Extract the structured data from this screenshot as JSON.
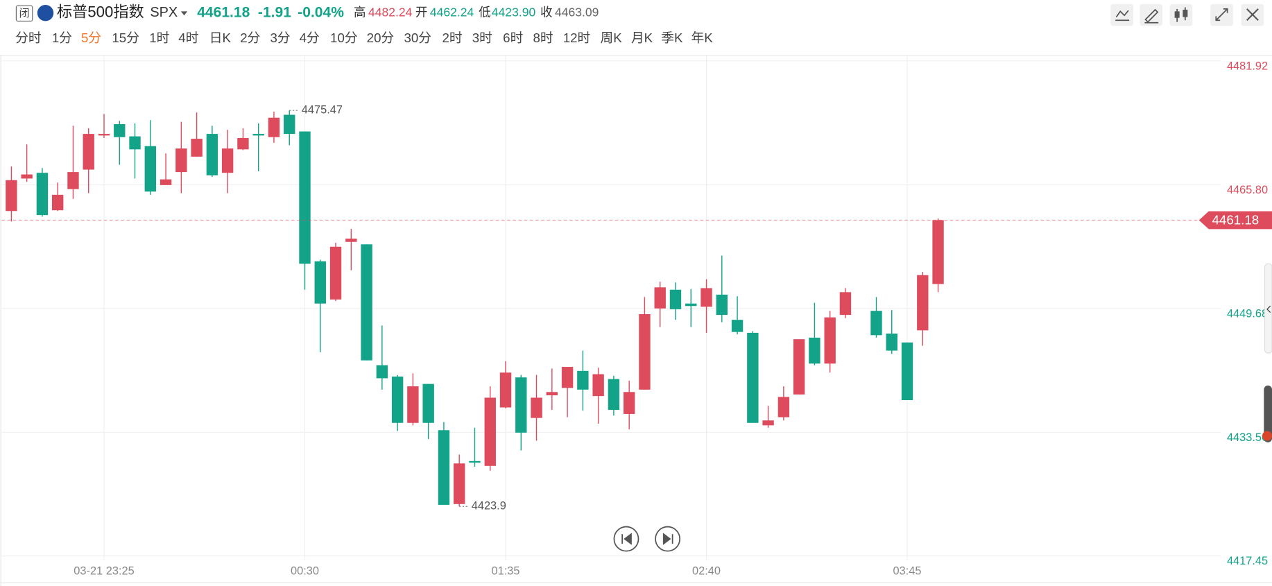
{
  "header": {
    "status": "闭",
    "name": "标普500指数",
    "symbol": "SPX",
    "price": "4461.18",
    "change": "-1.91",
    "change_pct": "-0.04%",
    "high_label": "高",
    "high": "4482.24",
    "open_label": "开",
    "open": "4462.24",
    "low_label": "低",
    "low": "4423.90",
    "close_label": "收",
    "prev_close": "4463.09"
  },
  "toolbar": {
    "periods": [
      "分时",
      "1分",
      "5分",
      "15分",
      "1时",
      "4时",
      "日K",
      "2分",
      "3分",
      "4分",
      "10分",
      "20分",
      "30分",
      "2时",
      "3时",
      "6时",
      "8时",
      "12时",
      "周K",
      "月K",
      "季K",
      "年K"
    ],
    "active_index": 2
  },
  "chart_data": {
    "type": "candlestick",
    "categories": [
      null,
      null,
      null,
      null,
      null,
      null,
      "03-21 23:25",
      null,
      null,
      null,
      null,
      null,
      null,
      null,
      null,
      null,
      null,
      null,
      null,
      "00:30",
      null,
      null,
      null,
      null,
      null,
      null,
      null,
      null,
      null,
      null,
      null,
      null,
      "01:35",
      null,
      null,
      null,
      null,
      null,
      null,
      null,
      null,
      null,
      null,
      null,
      null,
      "02:40",
      null,
      null,
      null,
      null,
      null,
      null,
      null,
      null,
      null,
      null,
      null,
      null,
      "03:45",
      null,
      null
    ],
    "open": [
      4462.37,
      4466.6,
      4467.34,
      4462.47,
      4465.22,
      4467.76,
      4472.2,
      4473.68,
      4472.09,
      4470.82,
      4465.75,
      4467.44,
      4469.45,
      4472.41,
      4467.34,
      4470.4,
      4472.41,
      4471.99,
      4474.9,
      4472.73,
      4455.82,
      4450.85,
      4458.35,
      4458.03,
      4442.29,
      4440.81,
      4434.78,
      4439.85,
      4433.83,
      4424.21,
      4429.81,
      4429.18,
      4436.79,
      4440.7,
      4435.42,
      4438.37,
      4439.33,
      4441.55,
      4438.27,
      4440.49,
      4435.94,
      4439.11,
      4449.68,
      4452.12,
      4450.32,
      4449.9,
      4451.48,
      4448.2,
      4446.51,
      4434.46,
      4435.52,
      4438.48,
      4445.88,
      4442.5,
      4448.84,
      null,
      4449.37,
      4446.41,
      4445.25,
      4446.83,
      4452.86
    ],
    "high": [
      4468.18,
      4471.04,
      4467.97,
      4466.07,
      4473.47,
      4473.15,
      4475.0,
      4474.1,
      4473.78,
      4474.21,
      4469.87,
      4473.99,
      4475.2,
      4473.47,
      4472.94,
      4473.15,
      4473.78,
      4475.3,
      4475.47,
      4472.73,
      4456.03,
      4458.25,
      4460.04,
      4458.03,
      4447.46,
      4441.02,
      4441.23,
      4439.85,
      4434.89,
      4430.66,
      4434.15,
      4439.54,
      4442.81,
      4441.02,
      4441.02,
      4441.86,
      4442.07,
      4444.19,
      4441.97,
      4440.91,
      4440.28,
      4451.16,
      4453.17,
      4453.07,
      4452.22,
      4453.49,
      4456.56,
      4451.27,
      4446.72,
      4437.0,
      4439.54,
      4445.67,
      4450.42,
      4449.37,
      4452.33,
      null,
      4451.16,
      4449.47,
      4445.25,
      4454.44,
      4461.4
    ],
    "low": [
      4461.0,
      4466.17,
      4461.63,
      4462.37,
      4463.95,
      4464.69,
      4471.88,
      4468.39,
      4466.6,
      4464.48,
      4465.75,
      4464.69,
      4469.45,
      4466.81,
      4464.69,
      4470.3,
      4467.55,
      4471.25,
      4470.93,
      4452.12,
      4443.98,
      4450.64,
      4454.65,
      4442.92,
      4439.11,
      4433.72,
      4434.46,
      4432.67,
      4424.11,
      4423.9,
      4429.07,
      4428.54,
      4436.68,
      4431.19,
      4432.46,
      4436.47,
      4435.52,
      4436.37,
      4434.67,
      4435.73,
      4433.93,
      4439.11,
      4447.25,
      4448.2,
      4447.25,
      4446.51,
      4447.89,
      4446.3,
      4434.78,
      4434.15,
      4435.1,
      4438.48,
      4442.29,
      4441.33,
      4448.42,
      null,
      4445.88,
      4443.77,
      4437.74,
      4444.82,
      4451.8
    ],
    "close": [
      4466.39,
      4467.13,
      4461.84,
      4464.48,
      4467.44,
      4472.41,
      4472.41,
      4471.99,
      4470.4,
      4464.9,
      4466.49,
      4470.51,
      4471.78,
      4467.02,
      4470.51,
      4471.88,
      4472.2,
      4474.52,
      4472.41,
      4455.5,
      4450.32,
      4457.72,
      4458.77,
      4442.92,
      4440.59,
      4434.78,
      4439.54,
      4434.78,
      4424.11,
      4429.5,
      4429.6,
      4438.06,
      4441.33,
      4433.51,
      4438.06,
      4438.8,
      4442.07,
      4439.11,
      4441.12,
      4436.47,
      4438.8,
      4448.94,
      4452.43,
      4449.58,
      4450.0,
      4452.33,
      4448.84,
      4446.62,
      4434.78,
      4435.1,
      4438.16,
      4445.67,
      4442.5,
      4448.52,
      4451.8,
      null,
      4446.2,
      4444.19,
      4437.74,
      4454.02,
      4461.18
    ],
    "up_color": "#dd4b5c",
    "down_color": "#12a388",
    "current_price": 4461.18,
    "ylim": [
      4416.92,
      4482.66
    ],
    "yticks": [
      {
        "value": 4417.45,
        "label": "4417.45"
      },
      {
        "value": 4433.56,
        "label": "4433.56"
      },
      {
        "value": 4449.68,
        "label": "4449.68"
      },
      {
        "value": 4465.8,
        "label": "4465.80"
      },
      {
        "value": 4481.92,
        "label": "4481.92"
      }
    ],
    "grid": true
  }
}
